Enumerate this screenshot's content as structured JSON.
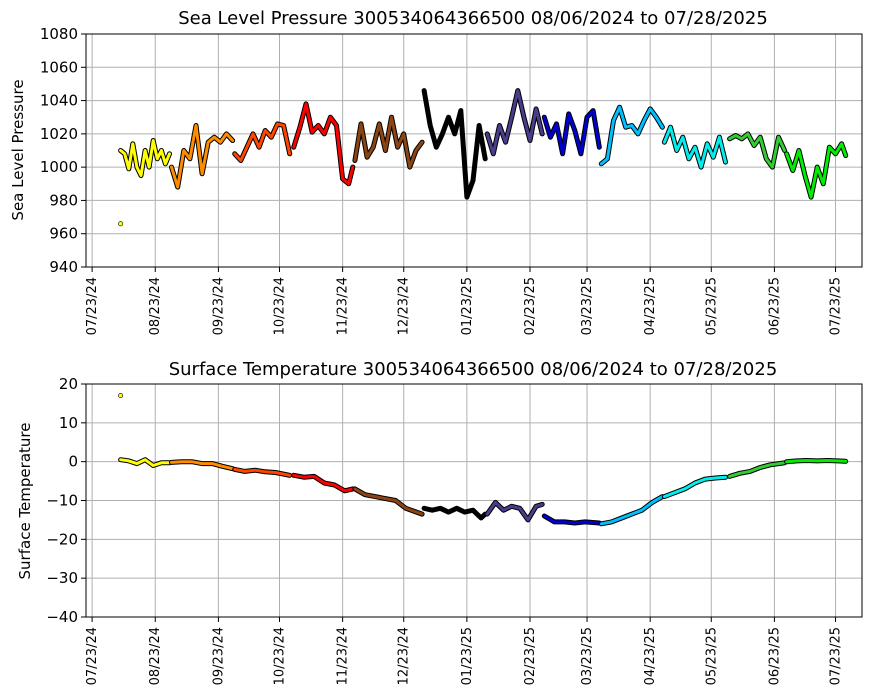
{
  "chart_data": [
    {
      "type": "scatter",
      "title": "Sea Level Pressure 300534064366500  08/06/2024 to 07/28/2025",
      "xlabel": "",
      "ylabel": "Sea Level Pressure",
      "ylim": [
        940,
        1080
      ],
      "yticks": [
        940,
        960,
        980,
        1000,
        1020,
        1040,
        1060,
        1080
      ],
      "xlim": [
        "2024-07-20",
        "2025-08-05"
      ],
      "xtick_dates": [
        "2024-07-23",
        "2024-08-23",
        "2024-09-23",
        "2024-10-23",
        "2024-11-23",
        "2024-12-23",
        "2025-01-23",
        "2025-02-23",
        "2025-03-23",
        "2025-04-23",
        "2025-05-23",
        "2025-06-23",
        "2025-07-23"
      ],
      "xtick_labels": [
        "07/23/24",
        "08/23/24",
        "09/23/24",
        "10/23/24",
        "11/23/24",
        "12/23/24",
        "01/23/25",
        "02/23/25",
        "03/23/25",
        "04/23/25",
        "05/23/25",
        "06/23/25",
        "07/23/25"
      ],
      "grid": true,
      "outliers": [
        {
          "date": "2024-08-06",
          "value": 966,
          "color": "#ffff00"
        }
      ],
      "series": [
        {
          "color": "#ffff00",
          "x": [
            "2024-08-06",
            "2024-08-08",
            "2024-08-10",
            "2024-08-12",
            "2024-08-14",
            "2024-08-16",
            "2024-08-18",
            "2024-08-20",
            "2024-08-22",
            "2024-08-24",
            "2024-08-26",
            "2024-08-28",
            "2024-08-30"
          ],
          "y": [
            1010,
            1008,
            999,
            1014,
            1000,
            995,
            1010,
            1000,
            1016,
            1005,
            1010,
            1002,
            1008
          ]
        },
        {
          "color": "#ff8c00",
          "x": [
            "2024-08-31",
            "2024-09-03",
            "2024-09-06",
            "2024-09-09",
            "2024-09-12",
            "2024-09-15",
            "2024-09-18",
            "2024-09-21",
            "2024-09-24",
            "2024-09-27",
            "2024-09-30"
          ],
          "y": [
            1000,
            988,
            1010,
            1005,
            1025,
            996,
            1015,
            1018,
            1015,
            1020,
            1016
          ]
        },
        {
          "color": "#ff4500",
          "x": [
            "2024-10-01",
            "2024-10-04",
            "2024-10-07",
            "2024-10-10",
            "2024-10-13",
            "2024-10-16",
            "2024-10-19",
            "2024-10-22",
            "2024-10-25",
            "2024-10-28"
          ],
          "y": [
            1008,
            1004,
            1012,
            1020,
            1012,
            1022,
            1018,
            1026,
            1025,
            1008
          ]
        },
        {
          "color": "#ff0000",
          "x": [
            "2024-10-30",
            "2024-11-02",
            "2024-11-05",
            "2024-11-08",
            "2024-11-11",
            "2024-11-14",
            "2024-11-17",
            "2024-11-20",
            "2024-11-23",
            "2024-11-26",
            "2024-11-28"
          ],
          "y": [
            1012,
            1024,
            1038,
            1021,
            1025,
            1020,
            1030,
            1025,
            993,
            990,
            1000
          ]
        },
        {
          "color": "#8b4513",
          "x": [
            "2024-11-29",
            "2024-12-02",
            "2024-12-05",
            "2024-12-08",
            "2024-12-11",
            "2024-12-14",
            "2024-12-17",
            "2024-12-20",
            "2024-12-23",
            "2024-12-26",
            "2024-12-29",
            "2025-01-01"
          ],
          "y": [
            1004,
            1026,
            1006,
            1012,
            1026,
            1010,
            1030,
            1012,
            1020,
            1000,
            1010,
            1015
          ]
        },
        {
          "color": "#000000",
          "x": [
            "2025-01-02",
            "2025-01-05",
            "2025-01-08",
            "2025-01-11",
            "2025-01-14",
            "2025-01-17",
            "2025-01-20",
            "2025-01-23",
            "2025-01-26",
            "2025-01-29",
            "2025-02-01"
          ],
          "y": [
            1046,
            1025,
            1012,
            1020,
            1030,
            1020,
            1034,
            982,
            992,
            1025,
            1005
          ]
        },
        {
          "color": "#483d8b",
          "x": [
            "2025-02-02",
            "2025-02-05",
            "2025-02-08",
            "2025-02-11",
            "2025-02-14",
            "2025-02-17",
            "2025-02-20",
            "2025-02-23",
            "2025-02-26",
            "2025-03-01"
          ],
          "y": [
            1020,
            1008,
            1025,
            1015,
            1030,
            1046,
            1030,
            1016,
            1035,
            1020
          ]
        },
        {
          "color": "#0000cd",
          "x": [
            "2025-03-02",
            "2025-03-05",
            "2025-03-08",
            "2025-03-11",
            "2025-03-14",
            "2025-03-17",
            "2025-03-20",
            "2025-03-23",
            "2025-03-26",
            "2025-03-29"
          ],
          "y": [
            1030,
            1018,
            1026,
            1008,
            1032,
            1022,
            1008,
            1030,
            1034,
            1012
          ]
        },
        {
          "color": "#00bfff",
          "x": [
            "2025-03-30",
            "2025-04-02",
            "2025-04-05",
            "2025-04-08",
            "2025-04-11",
            "2025-04-14",
            "2025-04-17",
            "2025-04-20",
            "2025-04-23",
            "2025-04-26",
            "2025-04-29"
          ],
          "y": [
            1002,
            1005,
            1028,
            1036,
            1024,
            1025,
            1020,
            1028,
            1035,
            1030,
            1024
          ]
        },
        {
          "color": "#00eeee",
          "x": [
            "2025-04-30",
            "2025-05-03",
            "2025-05-06",
            "2025-05-09",
            "2025-05-12",
            "2025-05-15",
            "2025-05-18",
            "2025-05-21",
            "2025-05-24",
            "2025-05-27",
            "2025-05-30"
          ],
          "y": [
            1015,
            1024,
            1010,
            1018,
            1005,
            1012,
            1000,
            1014,
            1006,
            1018,
            1003
          ]
        },
        {
          "color": "#32cd32",
          "x": [
            "2025-06-01",
            "2025-06-04",
            "2025-06-07",
            "2025-06-10",
            "2025-06-13",
            "2025-06-16",
            "2025-06-19",
            "2025-06-22",
            "2025-06-25",
            "2025-06-28"
          ],
          "y": [
            1017,
            1019,
            1017,
            1020,
            1013,
            1018,
            1005,
            1000,
            1018,
            1010
          ]
        },
        {
          "color": "#00ee00",
          "x": [
            "2025-06-29",
            "2025-07-02",
            "2025-07-05",
            "2025-07-08",
            "2025-07-11",
            "2025-07-14",
            "2025-07-17",
            "2025-07-20",
            "2025-07-23",
            "2025-07-26",
            "2025-07-28"
          ],
          "y": [
            1008,
            998,
            1010,
            995,
            982,
            1000,
            990,
            1012,
            1008,
            1014,
            1007
          ]
        }
      ]
    },
    {
      "type": "scatter",
      "title": "Surface Temperature 300534064366500  08/06/2024 to 07/28/2025",
      "xlabel": "",
      "ylabel": "Surface Temperature",
      "ylim": [
        -40,
        20
      ],
      "yticks": [
        -40,
        -30,
        -20,
        -10,
        0,
        10,
        20
      ],
      "xlim": [
        "2024-07-20",
        "2025-08-05"
      ],
      "xtick_dates": [
        "2024-07-23",
        "2024-08-23",
        "2024-09-23",
        "2024-10-23",
        "2024-11-23",
        "2024-12-23",
        "2025-01-23",
        "2025-02-23",
        "2025-03-23",
        "2025-04-23",
        "2025-05-23",
        "2025-06-23",
        "2025-07-23"
      ],
      "xtick_labels": [
        "07/23/24",
        "08/23/24",
        "09/23/24",
        "10/23/24",
        "11/23/24",
        "12/23/24",
        "01/23/25",
        "02/23/25",
        "03/23/25",
        "04/23/25",
        "05/23/25",
        "06/23/25",
        "07/23/25"
      ],
      "grid": true,
      "outliers": [
        {
          "date": "2024-08-06",
          "value": 17,
          "color": "#ffff00"
        }
      ],
      "series": [
        {
          "color": "#ffff00",
          "x": [
            "2024-08-06",
            "2024-08-10",
            "2024-08-14",
            "2024-08-18",
            "2024-08-22",
            "2024-08-26",
            "2024-08-30"
          ],
          "y": [
            0.5,
            0.2,
            -0.5,
            0.5,
            -1.0,
            -0.3,
            -0.3
          ]
        },
        {
          "color": "#ff8c00",
          "x": [
            "2024-08-31",
            "2024-09-05",
            "2024-09-10",
            "2024-09-15",
            "2024-09-20",
            "2024-09-25",
            "2024-09-30"
          ],
          "y": [
            -0.2,
            0,
            0,
            -0.5,
            -0.5,
            -1.2,
            -1.8
          ]
        },
        {
          "color": "#ff4500",
          "x": [
            "2024-10-01",
            "2024-10-06",
            "2024-10-11",
            "2024-10-16",
            "2024-10-21",
            "2024-10-28"
          ],
          "y": [
            -2.0,
            -2.5,
            -2.2,
            -2.6,
            -2.8,
            -3.5
          ]
        },
        {
          "color": "#ff0000",
          "x": [
            "2024-10-30",
            "2024-11-04",
            "2024-11-09",
            "2024-11-14",
            "2024-11-19",
            "2024-11-24",
            "2024-11-28"
          ],
          "y": [
            -3.5,
            -4.0,
            -3.8,
            -5.5,
            -6.0,
            -7.5,
            -7.0
          ]
        },
        {
          "color": "#8b4513",
          "x": [
            "2024-11-29",
            "2024-12-04",
            "2024-12-09",
            "2024-12-14",
            "2024-12-19",
            "2024-12-24",
            "2025-01-01"
          ],
          "y": [
            -7.0,
            -8.5,
            -9.0,
            -9.5,
            -10.0,
            -12.0,
            -13.5
          ]
        },
        {
          "color": "#000000",
          "x": [
            "2025-01-02",
            "2025-01-06",
            "2025-01-10",
            "2025-01-14",
            "2025-01-18",
            "2025-01-22",
            "2025-01-26",
            "2025-01-30",
            "2025-02-01"
          ],
          "y": [
            -12.0,
            -12.5,
            -12.0,
            -13.0,
            -12.0,
            -13.0,
            -12.5,
            -14.5,
            -13.5
          ]
        },
        {
          "color": "#483d8b",
          "x": [
            "2025-02-02",
            "2025-02-06",
            "2025-02-10",
            "2025-02-14",
            "2025-02-18",
            "2025-02-22",
            "2025-02-26",
            "2025-03-01"
          ],
          "y": [
            -13.5,
            -10.5,
            -12.5,
            -11.5,
            -12.0,
            -15.0,
            -11.5,
            -11.0
          ]
        },
        {
          "color": "#0000cd",
          "x": [
            "2025-03-02",
            "2025-03-07",
            "2025-03-12",
            "2025-03-17",
            "2025-03-22",
            "2025-03-29"
          ],
          "y": [
            -14.0,
            -15.5,
            -15.5,
            -15.8,
            -15.5,
            -15.8
          ]
        },
        {
          "color": "#00bfff",
          "x": [
            "2025-03-30",
            "2025-04-04",
            "2025-04-09",
            "2025-04-14",
            "2025-04-19",
            "2025-04-24",
            "2025-04-29"
          ],
          "y": [
            -16.0,
            -15.5,
            -14.5,
            -13.5,
            -12.5,
            -10.5,
            -9.0
          ]
        },
        {
          "color": "#00eeee",
          "x": [
            "2025-04-30",
            "2025-05-05",
            "2025-05-10",
            "2025-05-15",
            "2025-05-20",
            "2025-05-25",
            "2025-05-30"
          ],
          "y": [
            -9.0,
            -8.0,
            -7.0,
            -5.5,
            -4.5,
            -4.2,
            -4.0
          ]
        },
        {
          "color": "#32cd32",
          "x": [
            "2025-06-01",
            "2025-06-06",
            "2025-06-11",
            "2025-06-16",
            "2025-06-21",
            "2025-06-28"
          ],
          "y": [
            -3.8,
            -3.0,
            -2.5,
            -1.5,
            -0.8,
            -0.3
          ]
        },
        {
          "color": "#00ee00",
          "x": [
            "2025-06-29",
            "2025-07-04",
            "2025-07-09",
            "2025-07-14",
            "2025-07-19",
            "2025-07-24",
            "2025-07-28"
          ],
          "y": [
            0.0,
            0.2,
            0.3,
            0.2,
            0.3,
            0.2,
            0.1
          ]
        }
      ]
    }
  ]
}
